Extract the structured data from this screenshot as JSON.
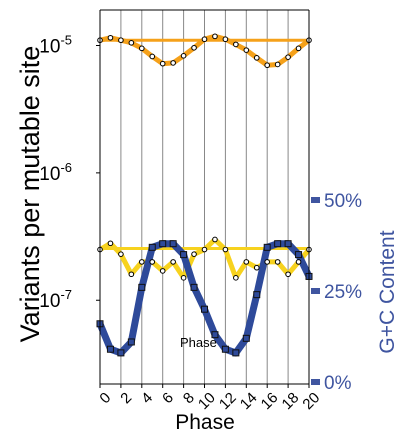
{
  "chart_data": {
    "type": "line",
    "title": "",
    "xlabel": "Phase",
    "ylabel_left": "Variants per mutable site",
    "ylabel_right": "G+C Content",
    "annotation": "Phase",
    "y_scale_left": "log",
    "x_ticks": [
      "0",
      "2",
      "4",
      "6",
      "8",
      "10",
      "12",
      "14",
      "16",
      "18",
      "20"
    ],
    "y_ticks_left": [
      {
        "base": "10",
        "exp": "-7",
        "value": 1e-07
      },
      {
        "base": "10",
        "exp": "-6",
        "value": 1e-06
      },
      {
        "base": "10",
        "exp": "-5",
        "value": 1e-05
      }
    ],
    "y_ticks_right": [
      {
        "label": "0%",
        "value": 0
      },
      {
        "label": "25%",
        "value": 25
      },
      {
        "label": "50%",
        "value": 50
      }
    ],
    "xlim": [
      0,
      20
    ],
    "ylim_left": [
      2.2e-08,
      1.9e-05
    ],
    "ylim_right": [
      0,
      50
    ],
    "grid": "vertical",
    "colors": {
      "orange": "#f5a11a",
      "yellow": "#f7d21e",
      "blue": "#2e4a9a",
      "right_axis": "#3f55a0",
      "grid": "#888888"
    },
    "series": [
      {
        "color": "orange",
        "axis": "left",
        "x": [
          0,
          1,
          2,
          3,
          4,
          5,
          6,
          7,
          8,
          9,
          10,
          11,
          12,
          13,
          14,
          15,
          16,
          17,
          18,
          19,
          20
        ],
        "y": [
          1.1e-05,
          1.15e-05,
          1.1e-05,
          1.05e-05,
          9.5e-06,
          8.2e-06,
          7.2e-06,
          7.3e-06,
          8.3e-06,
          9.6e-06,
          1.12e-05,
          1.18e-05,
          1.12e-05,
          1.02e-05,
          9.2e-06,
          8e-06,
          7e-06,
          7.1e-06,
          8.1e-06,
          9.5e-06,
          1.1e-05
        ]
      },
      {
        "color": "orange",
        "axis": "left",
        "style": "flat-reference",
        "x": [
          0,
          20
        ],
        "y": [
          1.1e-05,
          1.1e-05
        ]
      },
      {
        "color": "yellow",
        "axis": "left",
        "x": [
          0,
          1,
          2,
          3,
          4,
          5,
          6,
          7,
          8,
          9,
          10,
          11,
          12,
          13,
          14,
          15,
          16,
          17,
          18,
          19,
          20
        ],
        "y": [
          2.5e-07,
          2.8e-07,
          2.3e-07,
          1.6e-07,
          2e-07,
          2e-07,
          1.7e-07,
          2e-07,
          1.5e-07,
          2.3e-07,
          2.5e-07,
          3e-07,
          2.5e-07,
          1.5e-07,
          2e-07,
          1.8e-07,
          2e-07,
          2e-07,
          1.6e-07,
          2e-07,
          2.5e-07
        ]
      },
      {
        "color": "yellow",
        "axis": "left",
        "style": "flat-reference",
        "x": [
          0,
          20
        ],
        "y": [
          2.55e-07,
          2.55e-07
        ]
      },
      {
        "color": "blue",
        "axis": "right",
        "x": [
          0,
          1,
          2,
          3,
          4,
          5,
          6,
          7,
          8,
          9,
          10,
          11,
          12,
          13,
          14,
          15,
          16,
          17,
          18,
          19,
          20
        ],
        "y": [
          16,
          9,
          8,
          11,
          26,
          37,
          38,
          38,
          35,
          26,
          20,
          13,
          9,
          8,
          12,
          24,
          37,
          38,
          38,
          35,
          29
        ]
      }
    ]
  }
}
